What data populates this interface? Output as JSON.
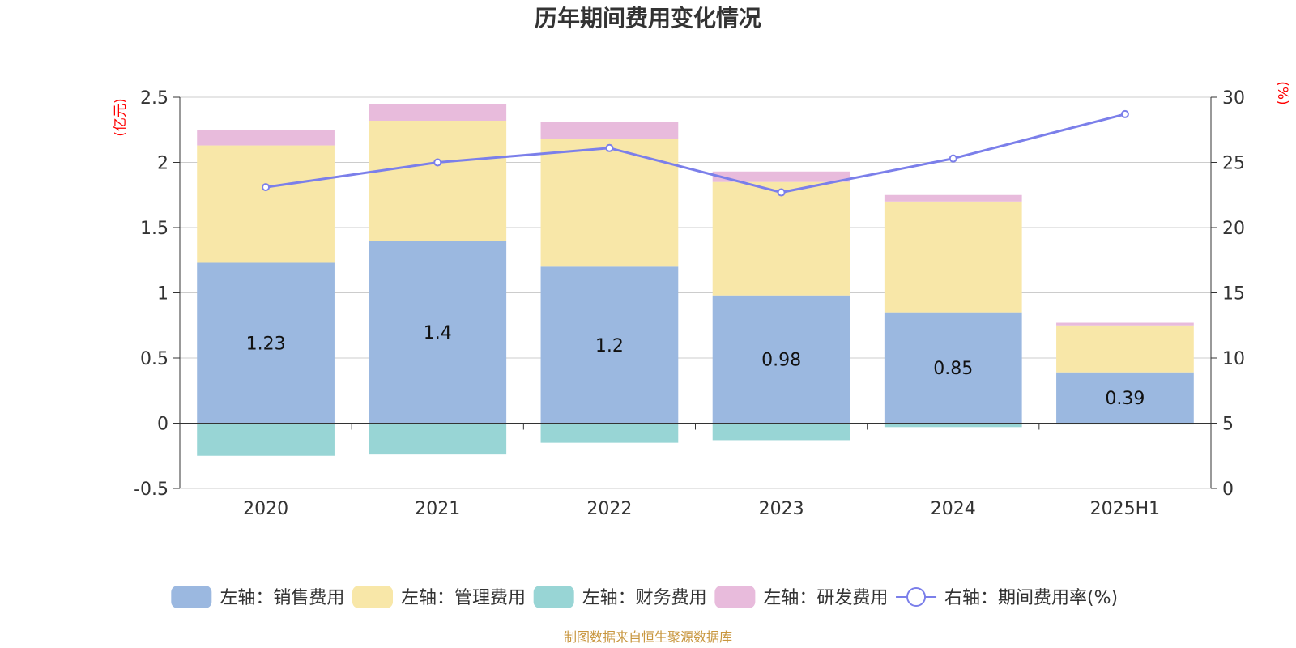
{
  "chart_data": {
    "type": "bar",
    "title": "历年期间费用变化情况",
    "categories": [
      "2020",
      "2021",
      "2022",
      "2023",
      "2024",
      "2025H1"
    ],
    "left_axis": {
      "unit": "(亿元)",
      "ylim": [
        -0.5,
        2.5
      ],
      "ticks": [
        "-0.5",
        "0",
        "0.5",
        "1",
        "1.5",
        "2",
        "2.5"
      ]
    },
    "right_axis": {
      "unit": "(%)",
      "ylim": [
        0,
        30
      ],
      "ticks": [
        "0",
        "5",
        "10",
        "15",
        "20",
        "25",
        "30"
      ]
    },
    "series": [
      {
        "name": "左轴：销售费用",
        "type": "bar",
        "axis": "left",
        "color": "#9bb8e0",
        "values": [
          1.23,
          1.4,
          1.2,
          0.98,
          0.85,
          0.39
        ],
        "labels": [
          "1.23",
          "1.4",
          "1.2",
          "0.98",
          "0.85",
          "0.39"
        ]
      },
      {
        "name": "左轴：管理费用",
        "type": "bar",
        "axis": "left",
        "color": "#f8e7a8",
        "values": [
          0.9,
          0.92,
          0.98,
          0.87,
          0.85,
          0.36
        ]
      },
      {
        "name": "左轴：财务费用",
        "type": "bar",
        "axis": "left",
        "color": "#98d5d5",
        "values": [
          -0.25,
          -0.24,
          -0.15,
          -0.13,
          -0.03,
          -0.01
        ]
      },
      {
        "name": "左轴：研发费用",
        "type": "bar",
        "axis": "left",
        "color": "#e8bbdc",
        "values": [
          0.12,
          0.13,
          0.13,
          0.08,
          0.05,
          0.02
        ]
      },
      {
        "name": "右轴：期间费用率(%)",
        "type": "line",
        "axis": "right",
        "color": "#7b7fea",
        "values": [
          23.1,
          25.0,
          26.1,
          22.7,
          25.3,
          28.7
        ]
      }
    ],
    "grid": true,
    "legend_position": "bottom"
  },
  "source_text": "制图数据来自恒生聚源数据库"
}
